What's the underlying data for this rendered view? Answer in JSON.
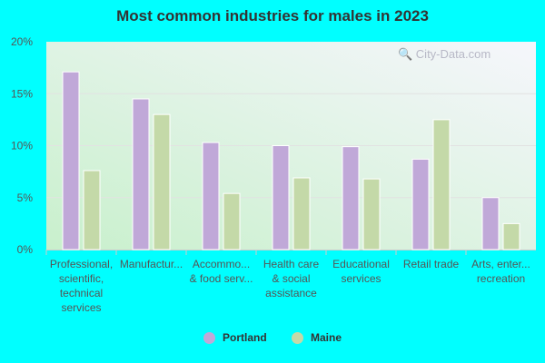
{
  "chart_data": {
    "type": "bar",
    "title": "Most common industries for males in 2023",
    "categories": [
      [
        "Professional,",
        "scientific,",
        "technical",
        "services"
      ],
      [
        "Manufactur..."
      ],
      [
        "Accommo...",
        "& food serv..."
      ],
      [
        "Health care",
        "& social",
        "assistance"
      ],
      [
        "Educational",
        "services"
      ],
      [
        "Retail trade"
      ],
      [
        "Arts, enter...",
        "recreation"
      ]
    ],
    "series": [
      {
        "name": "Portland",
        "color": "#c0a8d8",
        "values": [
          17.1,
          14.5,
          10.3,
          10.0,
          9.9,
          8.7,
          5.0
        ]
      },
      {
        "name": "Maine",
        "color": "#c4d9a8",
        "values": [
          7.6,
          13.0,
          5.4,
          6.9,
          6.8,
          12.5,
          2.5
        ]
      }
    ],
    "ylim": [
      0,
      20
    ],
    "yticks": [
      "0%",
      "5%",
      "10%",
      "15%",
      "20%"
    ],
    "ytick_values": [
      0,
      5,
      10,
      15,
      20
    ],
    "grid": true,
    "legend_position": "bottom",
    "watermark": "City-Data.com"
  }
}
